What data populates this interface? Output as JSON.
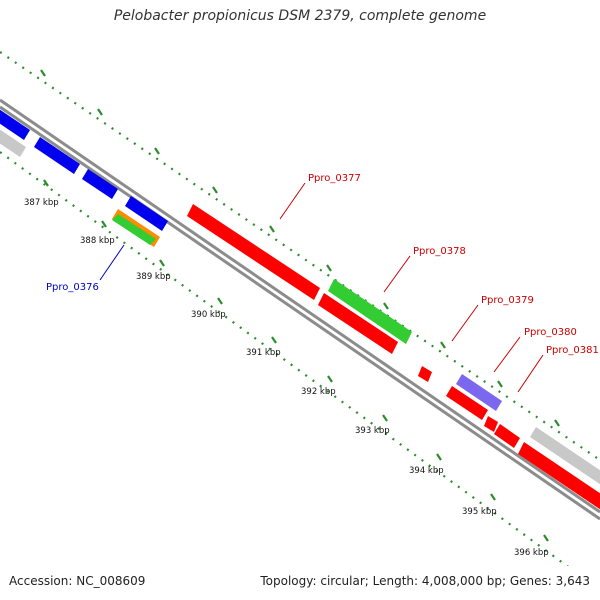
{
  "title": "Pelobacter propionicus DSM 2379, complete genome",
  "accession": "Accession: NC_008609",
  "summary": "Topology: circular; Length: 4,008,000 bp; Genes: 3,643",
  "colors": {
    "axis": "#8c8c8c",
    "tick": "#2e8b2e",
    "red": "#ff0000",
    "blue": "#0000ee",
    "green": "#33cc33",
    "orange": "#ff8c00",
    "gray": "#c8c8c8",
    "purple": "#7b68ee",
    "label_red": "#cc0000",
    "label_blue": "#0000cc"
  },
  "ticks": [
    {
      "label": "387 kbp"
    },
    {
      "label": "388 kbp"
    },
    {
      "label": "389 kbp"
    },
    {
      "label": "390 kbp"
    },
    {
      "label": "391 kbp"
    },
    {
      "label": "392 kbp"
    },
    {
      "label": "393 kbp"
    },
    {
      "label": "394 kbp"
    },
    {
      "label": "395 kbp"
    },
    {
      "label": "396 kbp"
    }
  ],
  "gene_labels": [
    {
      "name": "Ppro_0376"
    },
    {
      "name": "Ppro_0377"
    },
    {
      "name": "Ppro_0378"
    },
    {
      "name": "Ppro_0379"
    },
    {
      "name": "Ppro_0380"
    },
    {
      "name": "Ppro_0381"
    }
  ]
}
